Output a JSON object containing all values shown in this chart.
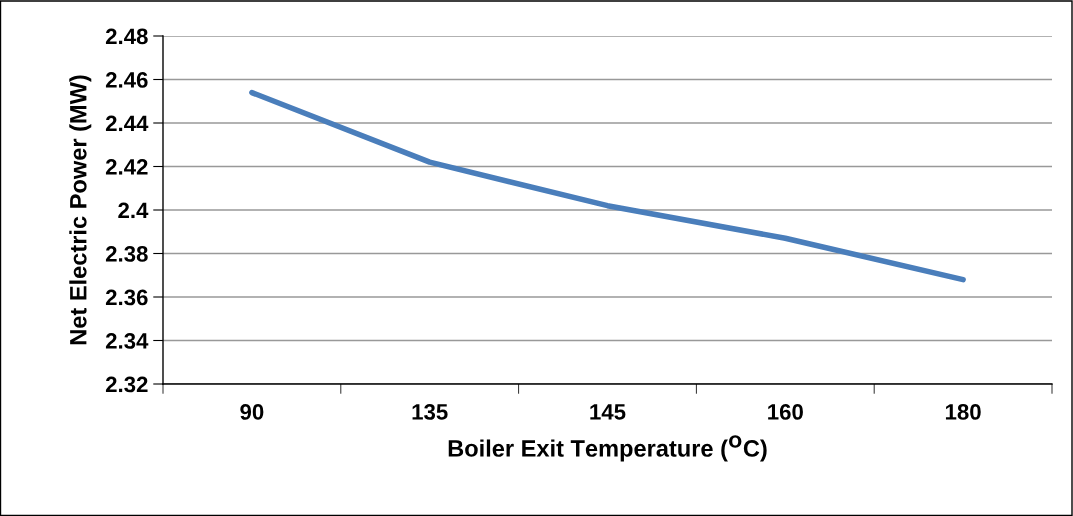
{
  "chart_data": {
    "type": "line",
    "xlabel": "Boiler Exit Temperature ($^{O}$C)",
    "ylabel": "Net Electric Power (MW)",
    "categories": [
      "90",
      "135",
      "145",
      "160",
      "180"
    ],
    "series": [
      {
        "color": "#4a7ebb",
        "values": [
          2.454,
          2.422,
          2.402,
          2.387,
          2.368
        ]
      }
    ],
    "ylim": [
      2.32,
      2.48
    ],
    "yticks": [
      2.32,
      2.34,
      2.36,
      2.38,
      2.4,
      2.42,
      2.44,
      2.46,
      2.48
    ],
    "grid": "y",
    "marker": "none",
    "line_style": "solid"
  }
}
